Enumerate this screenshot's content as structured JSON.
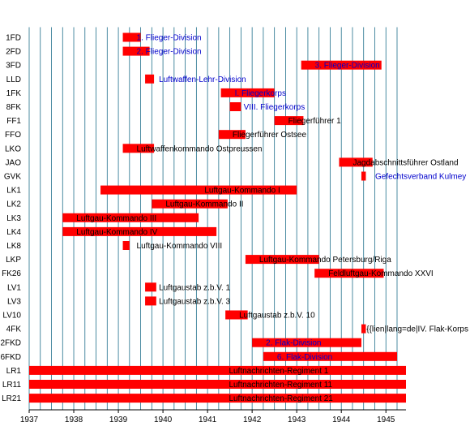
{
  "chart_data": {
    "type": "bar",
    "orientation": "horizontal-timeline",
    "title": "",
    "xlabel": "",
    "ylabel": "",
    "xlim": [
      1937,
      1945.45
    ],
    "x_ticks": [
      "1937",
      "1938",
      "1939",
      "1940",
      "1941",
      "1942",
      "1943",
      "1944",
      "1945"
    ],
    "grid": "vertical lines every quarter year",
    "colors": {
      "bar": "#ff0000",
      "grid": "#1f6f8b",
      "label_dark": "#000000",
      "label_blue": "#0000cc"
    },
    "rows": [
      {
        "code": "1FD",
        "start": 1939.1,
        "end": 1939.5,
        "label": "1. Flieger-Division",
        "label_color": "blue"
      },
      {
        "code": "2FD",
        "start": 1939.1,
        "end": 1939.7,
        "label": "2. Flieger-Division",
        "label_color": "blue"
      },
      {
        "code": "3FD",
        "start": 1943.1,
        "end": 1944.9,
        "label": "3. Flieger-Division",
        "label_color": "blue"
      },
      {
        "code": "LLD",
        "start": 1939.6,
        "end": 1939.8,
        "label": "Luftwaffen-Lehr-Division",
        "label_color": "blue"
      },
      {
        "code": "1FK",
        "start": 1941.3,
        "end": 1942.5,
        "label": "I. Fliegerkorps",
        "label_color": "blue"
      },
      {
        "code": "8FK",
        "start": 1941.5,
        "end": 1941.75,
        "label": "VIII. Fliegerkorps",
        "label_color": "blue"
      },
      {
        "code": "FF1",
        "start": 1942.5,
        "end": 1943.15,
        "label": "Fliegerführer 1",
        "label_color": "dark"
      },
      {
        "code": "FFO",
        "start": 1941.25,
        "end": 1941.85,
        "label": "Fliegerführer Ostsee",
        "label_color": "dark"
      },
      {
        "code": "LKO",
        "start": 1939.1,
        "end": 1939.8,
        "label": "Luftwaffenkommando Ostpreussen",
        "label_color": "dark"
      },
      {
        "code": "JAO",
        "start": 1943.95,
        "end": 1944.7,
        "label": "Jagdabschnittsführer Ostland",
        "label_color": "dark"
      },
      {
        "code": "GVK",
        "start": 1944.45,
        "end": 1944.55,
        "label": "Gefechtsverband Kulmey",
        "label_color": "blue"
      },
      {
        "code": "LK1",
        "start": 1938.6,
        "end": 1943.0,
        "label": "Luftgau-Kommando I",
        "label_color": "dark"
      },
      {
        "code": "LK2",
        "start": 1939.75,
        "end": 1941.45,
        "label": "Luftgau-Kommando II",
        "label_color": "dark"
      },
      {
        "code": "LK3",
        "start": 1937.75,
        "end": 1940.8,
        "label": "Luftgau-Kommando III",
        "label_color": "dark"
      },
      {
        "code": "LK4",
        "start": 1937.75,
        "end": 1941.2,
        "label": "Luftgau-Kommando IV",
        "label_color": "dark"
      },
      {
        "code": "LK8",
        "start": 1939.1,
        "end": 1939.25,
        "label": "Luftgau-Kommando VIII",
        "label_color": "dark"
      },
      {
        "code": "LKP",
        "start": 1941.85,
        "end": 1943.5,
        "label": "Luftgau-Kommando Petersburg/Riga",
        "label_color": "dark"
      },
      {
        "code": "FK26",
        "start": 1943.4,
        "end": 1944.95,
        "label": "Feldluftgau-Kommando XXVI",
        "label_color": "dark"
      },
      {
        "code": "LV1",
        "start": 1939.6,
        "end": 1939.85,
        "label": "Luftgaustab z.b.V. 1",
        "label_color": "dark"
      },
      {
        "code": "LV3",
        "start": 1939.6,
        "end": 1939.85,
        "label": "Luftgaustab z.b.V. 3",
        "label_color": "dark"
      },
      {
        "code": "LV10",
        "start": 1941.4,
        "end": 1941.9,
        "label": "Luftgaustab z.b.V. 10",
        "label_color": "dark"
      },
      {
        "code": "4FK",
        "start": 1944.45,
        "end": 1944.55,
        "label": "{{lien|lang=de|IV. Flak-Korps",
        "label_color": "dark"
      },
      {
        "code": "2FKD",
        "start": 1942.0,
        "end": 1944.45,
        "label": "2. Flak-Division",
        "label_color": "blue"
      },
      {
        "code": "6FKD",
        "start": 1942.25,
        "end": 1945.25,
        "label": "6. Flak-Division",
        "label_color": "blue"
      },
      {
        "code": "LR1",
        "start": 1937.0,
        "end": 1945.45,
        "label": "Luftnachrichten-Regiment 1",
        "label_color": "dark"
      },
      {
        "code": "LR11",
        "start": 1937.0,
        "end": 1945.45,
        "label": "Luftnachrichten-Regiment 11",
        "label_color": "dark"
      },
      {
        "code": "LR21",
        "start": 1937.0,
        "end": 1945.45,
        "label": "Luftnachrichten-Regiment 21",
        "label_color": "dark"
      }
    ]
  }
}
